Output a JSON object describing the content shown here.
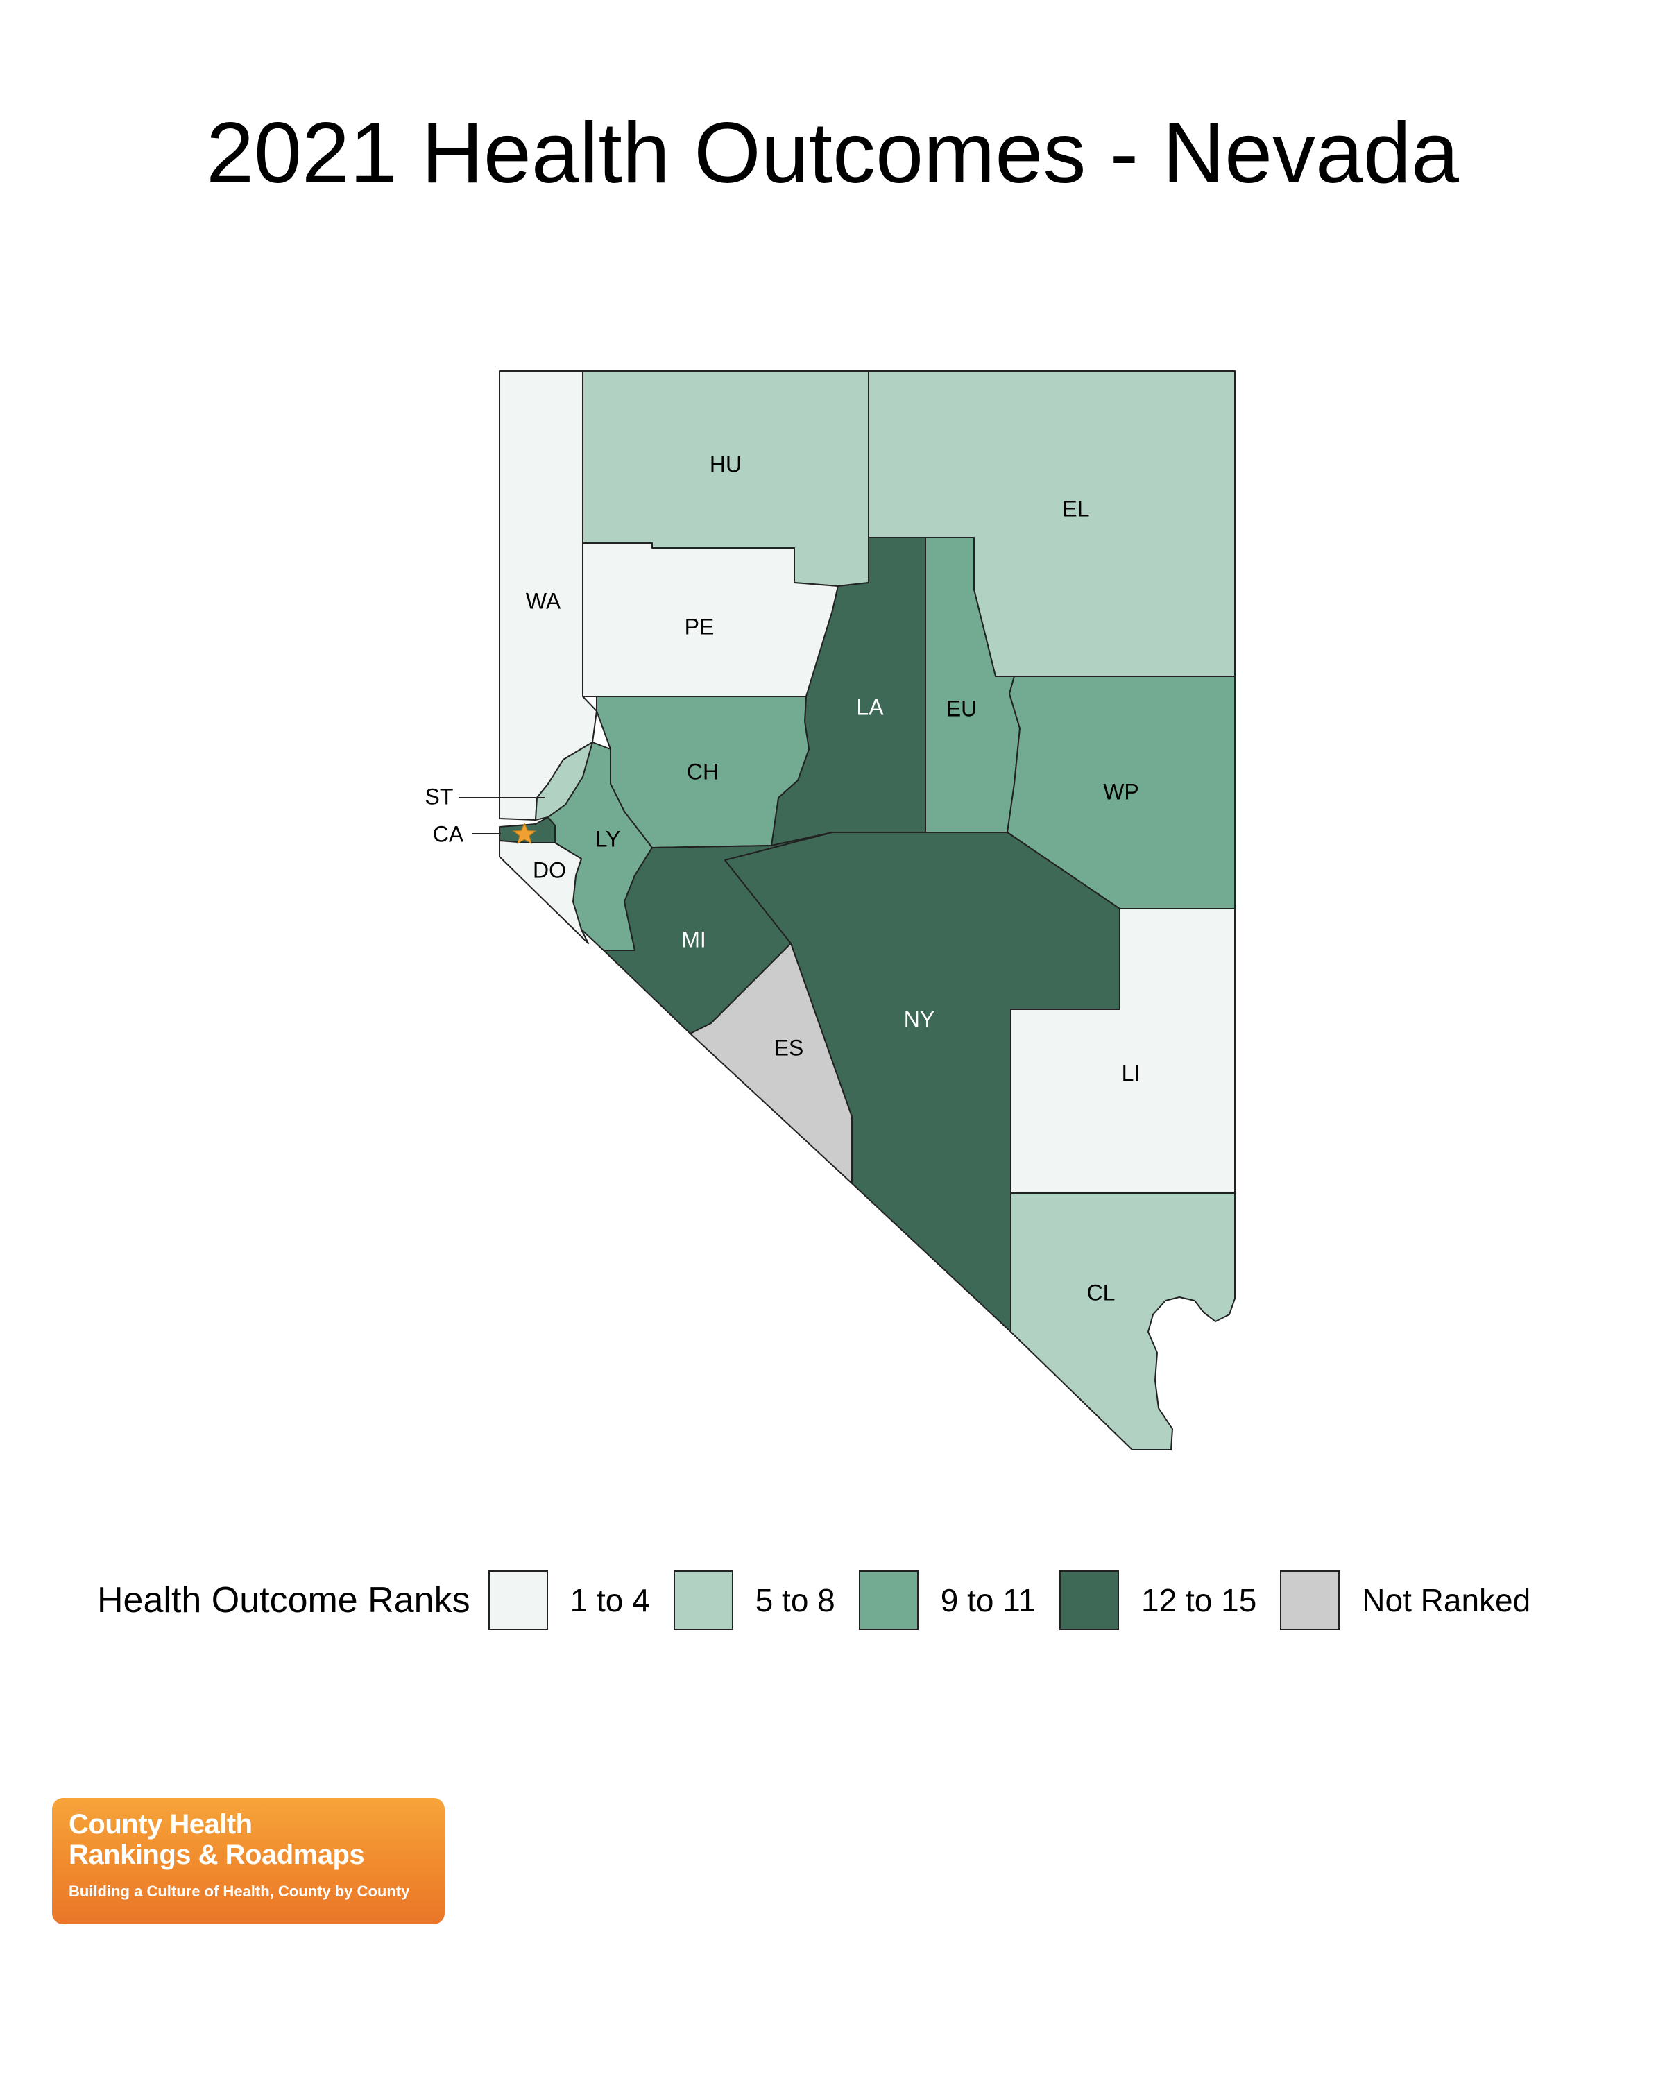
{
  "title": "2021 Health Outcomes - Nevada",
  "legend": {
    "title": "Health Outcome Ranks",
    "items": [
      {
        "label": "1 to 4",
        "color": "#f1f5f3"
      },
      {
        "label": "5 to 8",
        "color": "#b1d2c2"
      },
      {
        "label": "9 to 11",
        "color": "#72ab92"
      },
      {
        "label": "12 to 15",
        "color": "#3e6956"
      },
      {
        "label": "Not Ranked",
        "color": "#cccccc"
      }
    ]
  },
  "counties": [
    {
      "abbr": "HU",
      "rank_class": "5 to 8"
    },
    {
      "abbr": "EL",
      "rank_class": "5 to 8"
    },
    {
      "abbr": "WA",
      "rank_class": "1 to 4"
    },
    {
      "abbr": "PE",
      "rank_class": "1 to 4"
    },
    {
      "abbr": "LA",
      "rank_class": "12 to 15"
    },
    {
      "abbr": "EU",
      "rank_class": "9 to 11"
    },
    {
      "abbr": "CH",
      "rank_class": "9 to 11"
    },
    {
      "abbr": "WP",
      "rank_class": "9 to 11"
    },
    {
      "abbr": "ST",
      "rank_class": "5 to 8"
    },
    {
      "abbr": "CA",
      "rank_class": "12 to 15"
    },
    {
      "abbr": "LY",
      "rank_class": "9 to 11"
    },
    {
      "abbr": "DO",
      "rank_class": "1 to 4"
    },
    {
      "abbr": "MI",
      "rank_class": "12 to 15"
    },
    {
      "abbr": "NY",
      "rank_class": "12 to 15"
    },
    {
      "abbr": "ES",
      "rank_class": "Not Ranked"
    },
    {
      "abbr": "LI",
      "rank_class": "1 to 4"
    },
    {
      "abbr": "CL",
      "rank_class": "5 to 8"
    }
  ],
  "capital_marker": {
    "icon": "star-icon",
    "color": "#f0a030",
    "county": "CA"
  },
  "logo": {
    "line1": "County Health",
    "line2": "Rankings & Roadmaps",
    "tagline": "Building a Culture of Health, County by County"
  }
}
